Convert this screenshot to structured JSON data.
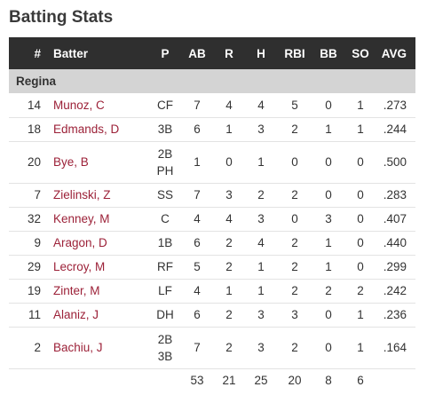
{
  "page": {
    "title": "Batting Stats"
  },
  "table": {
    "headers": {
      "num": "#",
      "batter": "Batter",
      "pos": "P",
      "ab": "AB",
      "r": "R",
      "h": "H",
      "rbi": "RBI",
      "bb": "BB",
      "so": "SO",
      "avg": "AVG"
    },
    "team": "Regina",
    "rows": [
      {
        "num": "14",
        "batter": "Munoz, C",
        "pos1": "CF",
        "pos2": "",
        "ab": "7",
        "r": "4",
        "h": "4",
        "rbi": "5",
        "bb": "0",
        "so": "1",
        "avg": ".273"
      },
      {
        "num": "18",
        "batter": "Edmands, D",
        "pos1": "3B",
        "pos2": "",
        "ab": "6",
        "r": "1",
        "h": "3",
        "rbi": "2",
        "bb": "1",
        "so": "1",
        "avg": ".244"
      },
      {
        "num": "20",
        "batter": "Bye, B",
        "pos1": "2B",
        "pos2": "PH",
        "ab": "1",
        "r": "0",
        "h": "1",
        "rbi": "0",
        "bb": "0",
        "so": "0",
        "avg": ".500"
      },
      {
        "num": "7",
        "batter": "Zielinski, Z",
        "pos1": "SS",
        "pos2": "",
        "ab": "7",
        "r": "3",
        "h": "2",
        "rbi": "2",
        "bb": "0",
        "so": "0",
        "avg": ".283"
      },
      {
        "num": "32",
        "batter": "Kenney, M",
        "pos1": "C",
        "pos2": "",
        "ab": "4",
        "r": "4",
        "h": "3",
        "rbi": "0",
        "bb": "3",
        "so": "0",
        "avg": ".407"
      },
      {
        "num": "9",
        "batter": "Aragon, D",
        "pos1": "1B",
        "pos2": "",
        "ab": "6",
        "r": "2",
        "h": "4",
        "rbi": "2",
        "bb": "1",
        "so": "0",
        "avg": ".440"
      },
      {
        "num": "29",
        "batter": "Lecroy, M",
        "pos1": "RF",
        "pos2": "",
        "ab": "5",
        "r": "2",
        "h": "1",
        "rbi": "2",
        "bb": "1",
        "so": "0",
        "avg": ".299"
      },
      {
        "num": "19",
        "batter": "Zinter, M",
        "pos1": "LF",
        "pos2": "",
        "ab": "4",
        "r": "1",
        "h": "1",
        "rbi": "2",
        "bb": "2",
        "so": "2",
        "avg": ".242"
      },
      {
        "num": "11",
        "batter": "Alaniz, J",
        "pos1": "DH",
        "pos2": "",
        "ab": "6",
        "r": "2",
        "h": "3",
        "rbi": "3",
        "bb": "0",
        "so": "1",
        "avg": ".236"
      },
      {
        "num": "2",
        "batter": "Bachiu, J",
        "pos1": "2B",
        "pos2": "3B",
        "ab": "7",
        "r": "2",
        "h": "3",
        "rbi": "2",
        "bb": "0",
        "so": "1",
        "avg": ".164"
      }
    ],
    "totals": {
      "ab": "53",
      "r": "21",
      "h": "25",
      "rbi": "20",
      "bb": "8",
      "so": "6"
    }
  },
  "colors": {
    "header_bg": "#2f2f2f",
    "team_bg": "#d4d4d4",
    "link": "#9c2138"
  }
}
